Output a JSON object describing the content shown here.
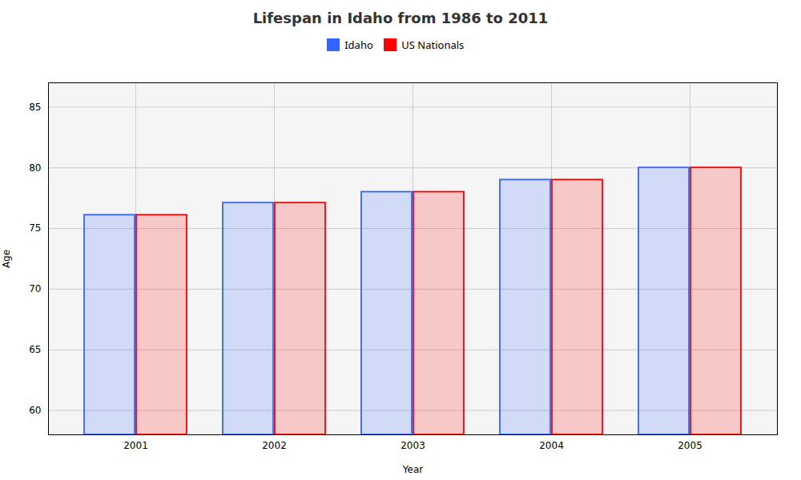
{
  "chart_data": {
    "type": "bar",
    "title": "Lifespan in Idaho from 1986 to 2011",
    "xlabel": "Year",
    "ylabel": "Age",
    "categories": [
      "2001",
      "2002",
      "2003",
      "2004",
      "2005"
    ],
    "series": [
      {
        "name": "Idaho",
        "color": "#3366ff",
        "values": [
          76.1,
          77.1,
          78.0,
          79.0,
          80.0
        ]
      },
      {
        "name": "US Nationals",
        "color": "#ff0000",
        "values": [
          76.1,
          77.1,
          78.0,
          79.0,
          80.0
        ]
      }
    ],
    "ylim": [
      58,
      87
    ],
    "yticks": [
      60,
      65,
      70,
      75,
      80,
      85
    ],
    "grid": true,
    "legend": "top"
  }
}
